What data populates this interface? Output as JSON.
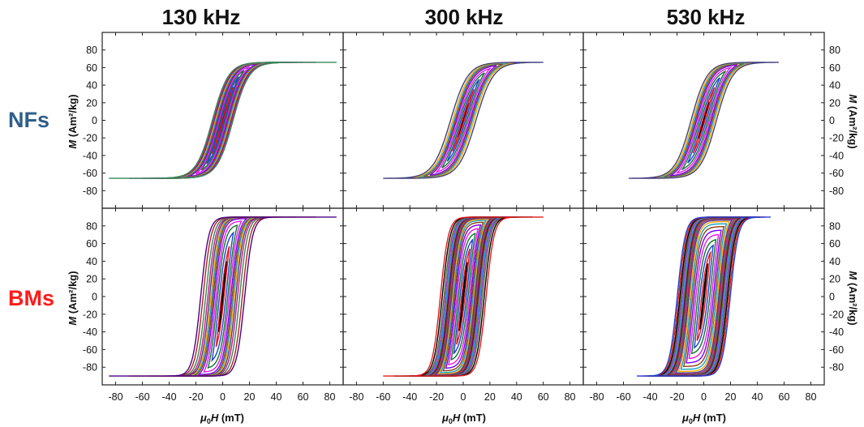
{
  "colors": {
    "nfs_label": "#2f5f8a",
    "bms_label": "#ff1a1a",
    "loop_palette": [
      "#000000",
      "#e41a1c",
      "#1f3fd6",
      "#0a7a2a",
      "#e01fe0",
      "#7a00ff",
      "#8b4513",
      "#18a0c0",
      "#ffa500",
      "#404080",
      "#c71585",
      "#2e8b57",
      "#b22222",
      "#4b0082",
      "#808000",
      "#1e90ff",
      "#9932cc",
      "#556b2f"
    ]
  },
  "labels": {
    "col_titles": [
      "130 kHz",
      "300 kHz",
      "530 kHz"
    ],
    "row_labels": [
      "NFs",
      "BMs"
    ],
    "y_axis_left_bold": "M",
    "y_axis_left_rest": " (Am²/kg)",
    "x_axis_left": {
      "mu": "μ",
      "sub": "0",
      "H": "H",
      "unit": " (mT)"
    },
    "x_axis_mid": {
      "mu": "μ",
      "sub": "0",
      "H": "H",
      "unit": " (mT)"
    },
    "x_axis_right": {
      "mu": "μ",
      "sub": "0",
      "H": "H",
      "unit": " (mT)"
    }
  },
  "chart_data": [
    {
      "id": "nfs-130",
      "type": "line",
      "row": "NFs",
      "column": "130 kHz",
      "xlabel": "",
      "ylabel": "M (Am²/kg)",
      "xlim": [
        -90,
        90
      ],
      "ylim": [
        -100,
        100
      ],
      "xticks": [
        -80,
        -60,
        -40,
        -20,
        0,
        20,
        40,
        60,
        80
      ],
      "yticks": [
        -80,
        -60,
        -40,
        -20,
        0,
        20,
        40,
        60,
        80
      ],
      "series_model": "nested hysteresis loops",
      "Hmax": [
        4,
        8,
        12,
        16,
        20,
        26,
        32,
        40,
        50,
        60,
        70,
        85
      ],
      "Ms": 66,
      "Hc_max": 8,
      "width": 12
    },
    {
      "id": "nfs-300",
      "type": "line",
      "row": "NFs",
      "column": "300 kHz",
      "xlim": [
        -90,
        90
      ],
      "ylim": [
        -100,
        100
      ],
      "series_model": "nested hysteresis loops",
      "Hmax": [
        4,
        8,
        12,
        16,
        20,
        25,
        30,
        36,
        45,
        60
      ],
      "Ms": 66,
      "Hc_max": 10,
      "width": 13
    },
    {
      "id": "nfs-530",
      "type": "line",
      "row": "NFs",
      "column": "530 kHz",
      "xlim": [
        -90,
        90
      ],
      "ylim": [
        -100,
        100
      ],
      "series_model": "nested hysteresis loops",
      "Hmax": [
        4,
        8,
        12,
        16,
        20,
        25,
        30,
        36,
        44,
        56
      ],
      "Ms": 66,
      "Hc_max": 10,
      "width": 12
    },
    {
      "id": "bms-130",
      "type": "line",
      "row": "BMs",
      "column": "130 kHz",
      "xlabel": "μ0H (mT)",
      "ylabel": "M (Am²/kg)",
      "xlim": [
        -90,
        90
      ],
      "ylim": [
        -100,
        100
      ],
      "xticks": [
        -80,
        -60,
        -40,
        -20,
        0,
        20,
        40,
        60,
        80
      ],
      "yticks": [
        -80,
        -60,
        -40,
        -20,
        0,
        20,
        40,
        60,
        80
      ],
      "series_model": "nested hysteresis loops",
      "Hmax": [
        3,
        5,
        8,
        11,
        14,
        18,
        22,
        26,
        30,
        36,
        44,
        55,
        70,
        85
      ],
      "Ms": 90,
      "Hc_max": 17,
      "width": 6
    },
    {
      "id": "bms-300",
      "type": "line",
      "row": "BMs",
      "column": "300 kHz",
      "xlabel": "μ0H (mT)",
      "xlim": [
        -90,
        90
      ],
      "ylim": [
        -100,
        100
      ],
      "xticks": [
        -80,
        -60,
        -40,
        -20,
        0,
        20,
        40,
        60,
        80
      ],
      "series_model": "nested hysteresis loops",
      "Hmax": [
        3,
        5,
        7,
        9,
        11,
        13,
        15,
        17,
        19,
        21,
        23,
        25,
        27,
        30,
        33,
        36,
        40,
        45,
        52,
        60
      ],
      "Ms": 90,
      "Hc_max": 18,
      "width": 6
    },
    {
      "id": "bms-530",
      "type": "line",
      "row": "BMs",
      "column": "530 kHz",
      "xlabel": "μ0H (mT)",
      "xlim": [
        -90,
        90
      ],
      "ylim": [
        -100,
        100
      ],
      "xticks": [
        -80,
        -60,
        -40,
        -20,
        0,
        20,
        40,
        60,
        80
      ],
      "series_model": "nested hysteresis loops",
      "Hmax": [
        3,
        5,
        7,
        9,
        11,
        13,
        15,
        17,
        19,
        21,
        23,
        25,
        27,
        29,
        31,
        33,
        36,
        39,
        42,
        46,
        50
      ],
      "Ms": 90,
      "Hc_max": 21,
      "width": 6
    }
  ]
}
